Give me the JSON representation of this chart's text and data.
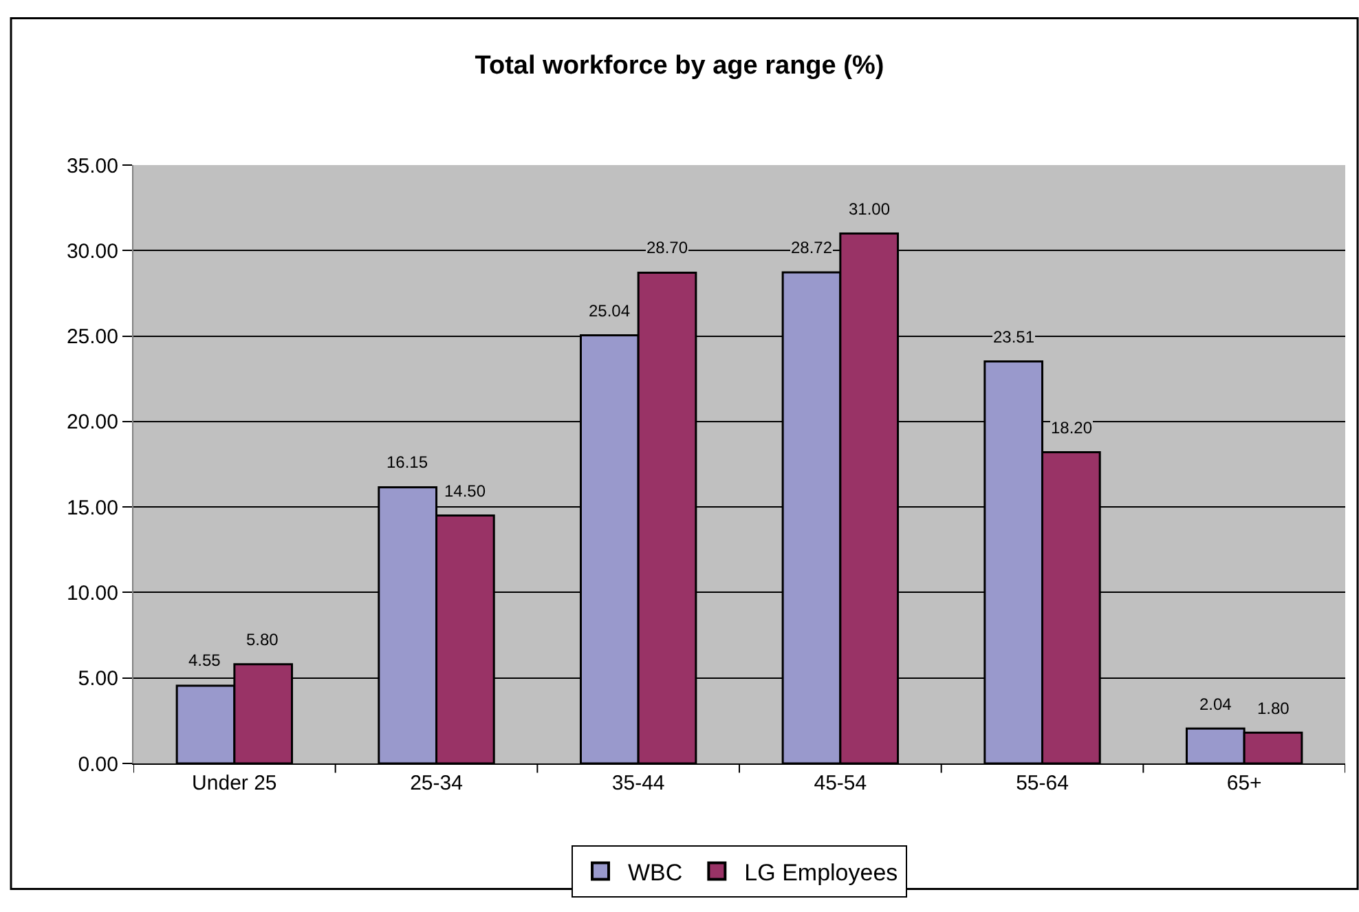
{
  "chart_data": {
    "type": "bar",
    "title": "Total workforce by age range (%)",
    "categories": [
      "Under 25",
      "25-34",
      "35-44",
      "45-54",
      "55-64",
      "65+"
    ],
    "series": [
      {
        "name": "WBC",
        "color": "#9999cc",
        "values": [
          4.55,
          16.15,
          25.04,
          28.72,
          23.51,
          2.04
        ],
        "value_labels": [
          "4.55",
          "16.15",
          "25.04",
          "28.72",
          "23.51",
          "2.04"
        ]
      },
      {
        "name": "LG Employees",
        "color": "#993366",
        "values": [
          5.8,
          14.5,
          28.7,
          31.0,
          18.2,
          1.8
        ],
        "value_labels": [
          "5.80",
          "14.50",
          "28.70",
          "31.00",
          "18.20",
          "1.80"
        ]
      }
    ],
    "ylim": [
      0,
      35
    ],
    "yticks": [
      {
        "value": 0,
        "label": "0.00"
      },
      {
        "value": 5,
        "label": "5.00"
      },
      {
        "value": 10,
        "label": "10.00"
      },
      {
        "value": 15,
        "label": "15.00"
      },
      {
        "value": 20,
        "label": "20.00"
      },
      {
        "value": 25,
        "label": "25.00"
      },
      {
        "value": 30,
        "label": "30.00"
      },
      {
        "value": 35,
        "label": "35.00"
      }
    ],
    "grid": "y",
    "legend": "bottom"
  }
}
